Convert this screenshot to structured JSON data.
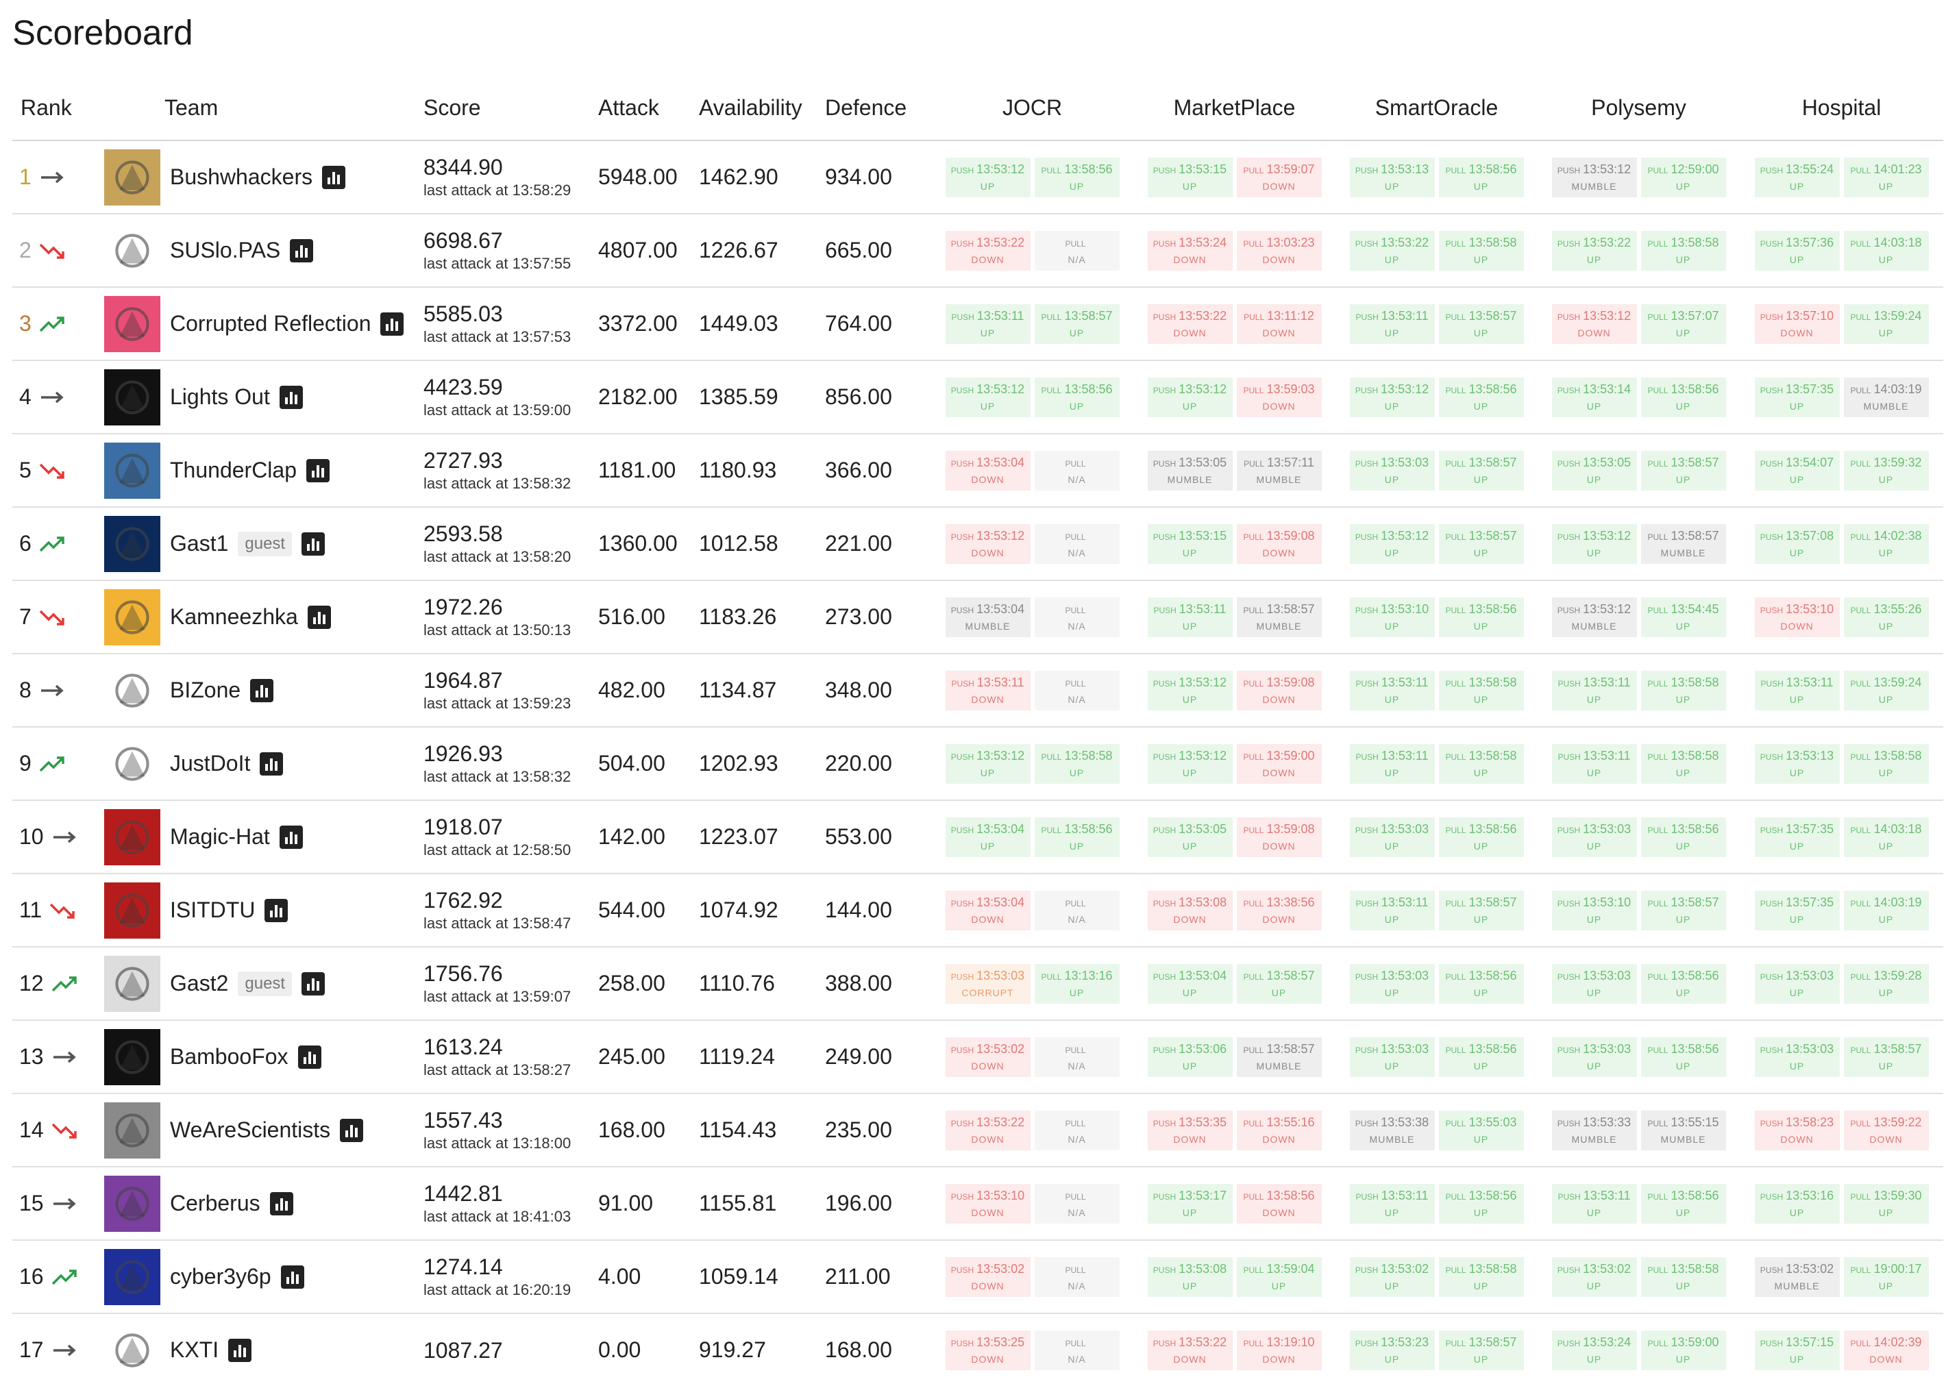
{
  "page": {
    "title": "Scoreboard"
  },
  "headers": {
    "rank": "Rank",
    "team": "Team",
    "score": "Score",
    "attack": "Attack",
    "availability": "Availability",
    "defence": "Defence"
  },
  "services": [
    "JOCR",
    "MarketPlace",
    "SmartOracle",
    "Polysemy",
    "Hospital"
  ],
  "colors": {
    "gold": "#c9a227",
    "silver": "#a8a8a8",
    "bronze": "#c07a38",
    "trend_up": "#2e9c4a",
    "trend_down": "#e53935",
    "trend_same": "#555555"
  },
  "teams": [
    {
      "rank": "1",
      "trend": "same",
      "name": "Bushwhackers",
      "guest": "",
      "score": "8344.90",
      "last_attack": "last attack at 13:58:29",
      "attack": "5948.00",
      "availability": "1462.90",
      "defence": "934.00",
      "services": [
        [
          "13:53:12",
          "up",
          "13:58:56",
          "up"
        ],
        [
          "13:53:15",
          "up",
          "13:59:07",
          "down"
        ],
        [
          "13:53:13",
          "up",
          "13:58:56",
          "up"
        ],
        [
          "13:53:12",
          "mumble",
          "12:59:00",
          "up"
        ],
        [
          "13:55:24",
          "up",
          "14:01:23",
          "up"
        ]
      ]
    },
    {
      "rank": "2",
      "trend": "down",
      "name": "SUSlo.PAS",
      "guest": "",
      "score": "6698.67",
      "last_attack": "last attack at 13:57:55",
      "attack": "4807.00",
      "availability": "1226.67",
      "defence": "665.00",
      "services": [
        [
          "13:53:22",
          "down",
          "",
          "na"
        ],
        [
          "13:53:24",
          "down",
          "13:03:23",
          "down"
        ],
        [
          "13:53:22",
          "up",
          "13:58:58",
          "up"
        ],
        [
          "13:53:22",
          "up",
          "13:58:58",
          "up"
        ],
        [
          "13:57:36",
          "up",
          "14:03:18",
          "up"
        ]
      ]
    },
    {
      "rank": "3",
      "trend": "up",
      "name": "Corrupted Reflection",
      "guest": "",
      "score": "5585.03",
      "last_attack": "last attack at 13:57:53",
      "attack": "3372.00",
      "availability": "1449.03",
      "defence": "764.00",
      "services": [
        [
          "13:53:11",
          "up",
          "13:58:57",
          "up"
        ],
        [
          "13:53:22",
          "down",
          "13:11:12",
          "down"
        ],
        [
          "13:53:11",
          "up",
          "13:58:57",
          "up"
        ],
        [
          "13:53:12",
          "down",
          "13:57:07",
          "up"
        ],
        [
          "13:57:10",
          "down",
          "13:59:24",
          "up"
        ]
      ]
    },
    {
      "rank": "4",
      "trend": "same",
      "name": "Lights Out",
      "guest": "",
      "score": "4423.59",
      "last_attack": "last attack at 13:59:00",
      "attack": "2182.00",
      "availability": "1385.59",
      "defence": "856.00",
      "services": [
        [
          "13:53:12",
          "up",
          "13:58:56",
          "up"
        ],
        [
          "13:53:12",
          "up",
          "13:59:03",
          "down"
        ],
        [
          "13:53:12",
          "up",
          "13:58:56",
          "up"
        ],
        [
          "13:53:14",
          "up",
          "13:58:56",
          "up"
        ],
        [
          "13:57:35",
          "up",
          "14:03:19",
          "mumble"
        ]
      ]
    },
    {
      "rank": "5",
      "trend": "down",
      "name": "ThunderClap",
      "guest": "",
      "score": "2727.93",
      "last_attack": "last attack at 13:58:32",
      "attack": "1181.00",
      "availability": "1180.93",
      "defence": "366.00",
      "services": [
        [
          "13:53:04",
          "down",
          "",
          "na"
        ],
        [
          "13:53:05",
          "mumble",
          "13:57:11",
          "mumble"
        ],
        [
          "13:53:03",
          "up",
          "13:58:57",
          "up"
        ],
        [
          "13:53:05",
          "up",
          "13:58:57",
          "up"
        ],
        [
          "13:54:07",
          "up",
          "13:59:32",
          "up"
        ]
      ]
    },
    {
      "rank": "6",
      "trend": "up",
      "name": "Gast1",
      "guest": "guest",
      "score": "2593.58",
      "last_attack": "last attack at 13:58:20",
      "attack": "1360.00",
      "availability": "1012.58",
      "defence": "221.00",
      "services": [
        [
          "13:53:12",
          "down",
          "",
          "na"
        ],
        [
          "13:53:15",
          "up",
          "13:59:08",
          "down"
        ],
        [
          "13:53:12",
          "up",
          "13:58:57",
          "up"
        ],
        [
          "13:53:12",
          "up",
          "13:58:57",
          "mumble"
        ],
        [
          "13:57:08",
          "up",
          "14:02:38",
          "up"
        ]
      ]
    },
    {
      "rank": "7",
      "trend": "down",
      "name": "Kamneezhka",
      "guest": "",
      "score": "1972.26",
      "last_attack": "last attack at 13:50:13",
      "attack": "516.00",
      "availability": "1183.26",
      "defence": "273.00",
      "services": [
        [
          "13:53:04",
          "mumble",
          "",
          "na"
        ],
        [
          "13:53:11",
          "up",
          "13:58:57",
          "mumble"
        ],
        [
          "13:53:10",
          "up",
          "13:58:56",
          "up"
        ],
        [
          "13:53:12",
          "mumble",
          "13:54:45",
          "up"
        ],
        [
          "13:53:10",
          "down",
          "13:55:26",
          "up"
        ]
      ]
    },
    {
      "rank": "8",
      "trend": "same",
      "name": "BIZone",
      "guest": "",
      "score": "1964.87",
      "last_attack": "last attack at 13:59:23",
      "attack": "482.00",
      "availability": "1134.87",
      "defence": "348.00",
      "services": [
        [
          "13:53:11",
          "down",
          "",
          "na"
        ],
        [
          "13:53:12",
          "up",
          "13:59:08",
          "down"
        ],
        [
          "13:53:11",
          "up",
          "13:58:58",
          "up"
        ],
        [
          "13:53:11",
          "up",
          "13:58:58",
          "up"
        ],
        [
          "13:53:11",
          "up",
          "13:59:24",
          "up"
        ]
      ]
    },
    {
      "rank": "9",
      "trend": "up",
      "name": "JustDoIt",
      "guest": "",
      "score": "1926.93",
      "last_attack": "last attack at 13:58:32",
      "attack": "504.00",
      "availability": "1202.93",
      "defence": "220.00",
      "services": [
        [
          "13:53:12",
          "up",
          "13:58:58",
          "up"
        ],
        [
          "13:53:12",
          "up",
          "13:59:00",
          "down"
        ],
        [
          "13:53:11",
          "up",
          "13:58:58",
          "up"
        ],
        [
          "13:53:11",
          "up",
          "13:58:58",
          "up"
        ],
        [
          "13:53:13",
          "up",
          "13:58:58",
          "up"
        ]
      ]
    },
    {
      "rank": "10",
      "trend": "same",
      "name": "Magic-Hat",
      "guest": "",
      "score": "1918.07",
      "last_attack": "last attack at 12:58:50",
      "attack": "142.00",
      "availability": "1223.07",
      "defence": "553.00",
      "services": [
        [
          "13:53:04",
          "up",
          "13:58:56",
          "up"
        ],
        [
          "13:53:05",
          "up",
          "13:59:08",
          "down"
        ],
        [
          "13:53:03",
          "up",
          "13:58:56",
          "up"
        ],
        [
          "13:53:03",
          "up",
          "13:58:56",
          "up"
        ],
        [
          "13:57:35",
          "up",
          "14:03:18",
          "up"
        ]
      ]
    },
    {
      "rank": "11",
      "trend": "down",
      "name": "ISITDTU",
      "guest": "",
      "score": "1762.92",
      "last_attack": "last attack at 13:58:47",
      "attack": "544.00",
      "availability": "1074.92",
      "defence": "144.00",
      "services": [
        [
          "13:53:04",
          "down",
          "",
          "na"
        ],
        [
          "13:53:08",
          "down",
          "13:38:56",
          "down"
        ],
        [
          "13:53:11",
          "up",
          "13:58:57",
          "up"
        ],
        [
          "13:53:10",
          "up",
          "13:58:57",
          "up"
        ],
        [
          "13:57:35",
          "up",
          "14:03:19",
          "up"
        ]
      ]
    },
    {
      "rank": "12",
      "trend": "up",
      "name": "Gast2",
      "guest": "guest",
      "score": "1756.76",
      "last_attack": "last attack at 13:59:07",
      "attack": "258.00",
      "availability": "1110.76",
      "defence": "388.00",
      "services": [
        [
          "13:53:03",
          "corrupt",
          "13:13:16",
          "up"
        ],
        [
          "13:53:04",
          "up",
          "13:58:57",
          "up"
        ],
        [
          "13:53:03",
          "up",
          "13:58:56",
          "up"
        ],
        [
          "13:53:03",
          "up",
          "13:58:56",
          "up"
        ],
        [
          "13:53:03",
          "up",
          "13:59:28",
          "up"
        ]
      ]
    },
    {
      "rank": "13",
      "trend": "same",
      "name": "BambooFox",
      "guest": "",
      "score": "1613.24",
      "last_attack": "last attack at 13:58:27",
      "attack": "245.00",
      "availability": "1119.24",
      "defence": "249.00",
      "services": [
        [
          "13:53:02",
          "down",
          "",
          "na"
        ],
        [
          "13:53:06",
          "up",
          "13:58:57",
          "mumble"
        ],
        [
          "13:53:03",
          "up",
          "13:58:56",
          "up"
        ],
        [
          "13:53:03",
          "up",
          "13:58:56",
          "up"
        ],
        [
          "13:53:03",
          "up",
          "13:58:57",
          "up"
        ]
      ]
    },
    {
      "rank": "14",
      "trend": "down",
      "name": "WeAreScientists",
      "guest": "",
      "score": "1557.43",
      "last_attack": "last attack at 13:18:00",
      "attack": "168.00",
      "availability": "1154.43",
      "defence": "235.00",
      "services": [
        [
          "13:53:22",
          "down",
          "",
          "na"
        ],
        [
          "13:53:35",
          "down",
          "13:55:16",
          "down"
        ],
        [
          "13:53:38",
          "mumble",
          "13:55:03",
          "up"
        ],
        [
          "13:53:33",
          "mumble",
          "13:55:15",
          "mumble"
        ],
        [
          "13:58:23",
          "down",
          "13:59:22",
          "down"
        ]
      ]
    },
    {
      "rank": "15",
      "trend": "same",
      "name": "Cerberus",
      "guest": "",
      "score": "1442.81",
      "last_attack": "last attack at 18:41:03",
      "attack": "91.00",
      "availability": "1155.81",
      "defence": "196.00",
      "services": [
        [
          "13:53:10",
          "down",
          "",
          "na"
        ],
        [
          "13:53:17",
          "up",
          "13:58:56",
          "down"
        ],
        [
          "13:53:11",
          "up",
          "13:58:56",
          "up"
        ],
        [
          "13:53:11",
          "up",
          "13:58:56",
          "up"
        ],
        [
          "13:53:16",
          "up",
          "13:59:30",
          "up"
        ]
      ]
    },
    {
      "rank": "16",
      "trend": "up",
      "name": "cyber3y6p",
      "guest": "",
      "score": "1274.14",
      "last_attack": "last attack at 16:20:19",
      "attack": "4.00",
      "availability": "1059.14",
      "defence": "211.00",
      "services": [
        [
          "13:53:02",
          "down",
          "",
          "na"
        ],
        [
          "13:53:08",
          "up",
          "13:59:04",
          "up"
        ],
        [
          "13:53:02",
          "up",
          "13:58:58",
          "up"
        ],
        [
          "13:53:02",
          "up",
          "13:58:58",
          "up"
        ],
        [
          "13:53:02",
          "mumble",
          "19:00:17",
          "up"
        ]
      ]
    },
    {
      "rank": "17",
      "trend": "same",
      "name": "KXTI",
      "guest": "",
      "score": "1087.27",
      "last_attack": "",
      "attack": "0.00",
      "availability": "919.27",
      "defence": "168.00",
      "services": [
        [
          "13:53:25",
          "down",
          "",
          "na"
        ],
        [
          "13:53:22",
          "down",
          "13:19:10",
          "down"
        ],
        [
          "13:53:23",
          "up",
          "13:58:57",
          "up"
        ],
        [
          "13:53:24",
          "up",
          "13:59:00",
          "up"
        ],
        [
          "13:57:15",
          "up",
          "14:02:39",
          "down"
        ]
      ]
    }
  ],
  "labels": {
    "push": "PUSH",
    "pull": "PULL",
    "up": "UP",
    "down": "DOWN",
    "mumble": "MUMBLE",
    "corrupt": "CORRUPT",
    "na": "N/A"
  },
  "logo_colors": [
    "#c7a35a",
    "#ffffff",
    "#e94e77",
    "#111111",
    "#3a6ea5",
    "#0b2a5a",
    "#f2b233",
    "#ffffff",
    "#ffffff",
    "#b71c1c",
    "#b71c1c",
    "#dddddd",
    "#111111",
    "#8a8a8a",
    "#7b3fa0",
    "#1e2f9a",
    "#ffffff"
  ]
}
